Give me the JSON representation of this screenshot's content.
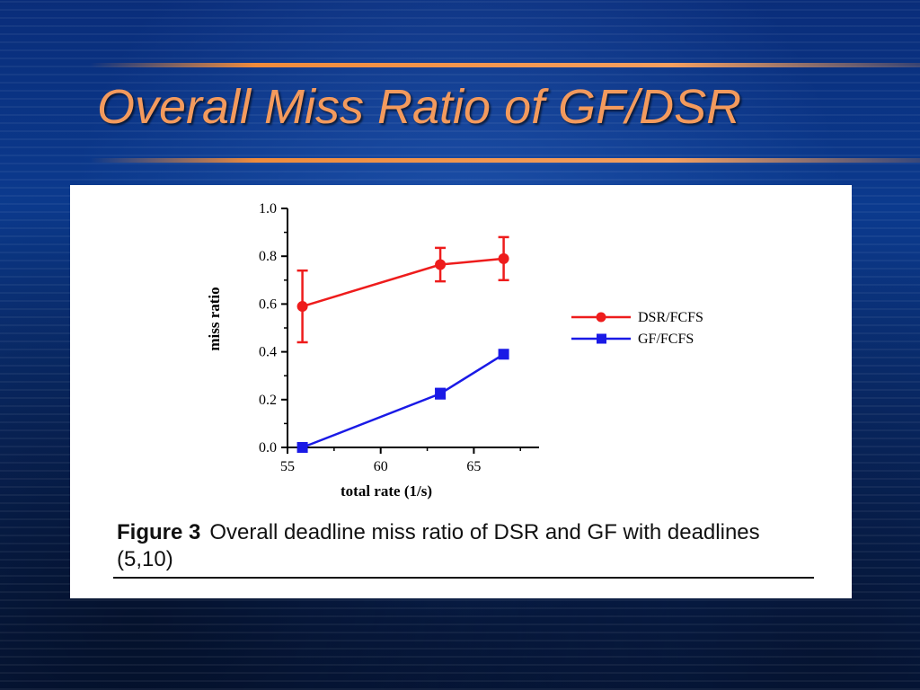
{
  "slide": {
    "title": "Overall Miss Ratio of GF/DSR"
  },
  "figure": {
    "caption_label": "Figure 3",
    "caption_text": "Overall deadline miss ratio of DSR and GF with deadlines (5,10)"
  },
  "colors": {
    "title": "#f39a5d",
    "accent_rule": "#f08c3c",
    "dsr": "#ee1c1c",
    "gf": "#1a1ae6"
  },
  "chart_data": {
    "type": "line",
    "xlabel": "total rate (1/s)",
    "ylabel": "miss ratio",
    "xlim": [
      55,
      68.5
    ],
    "ylim": [
      0.0,
      1.0
    ],
    "xticks": [
      55,
      60,
      65
    ],
    "yticks": [
      0.0,
      0.2,
      0.4,
      0.6,
      0.8,
      1.0
    ],
    "ytick_labels": [
      "0.0",
      "0.2",
      "0.4",
      "0.6",
      "0.8",
      "1.0"
    ],
    "legend_position": "right",
    "series": [
      {
        "name": "DSR/FCFS",
        "marker": "circle",
        "color": "#ee1c1c",
        "x": [
          55.8,
          63.2,
          66.6
        ],
        "y": [
          0.59,
          0.765,
          0.79
        ],
        "err": [
          0.15,
          0.07,
          0.09
        ]
      },
      {
        "name": "GF/FCFS",
        "marker": "square",
        "color": "#1a1ae6",
        "x": [
          55.8,
          63.2,
          66.6
        ],
        "y": [
          0.0,
          0.225,
          0.39
        ],
        "err": [
          0.0,
          0.02,
          0.0
        ]
      }
    ]
  }
}
